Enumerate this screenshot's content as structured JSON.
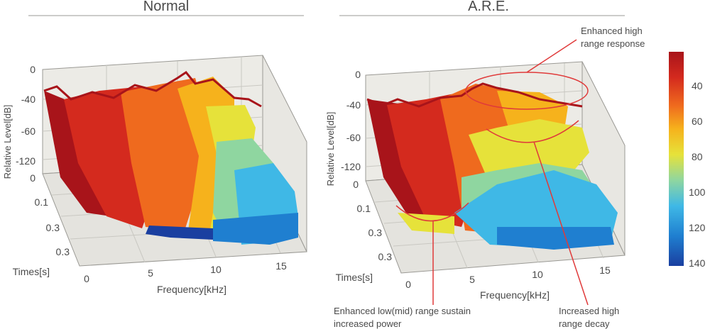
{
  "colors": {
    "scale": [
      "#1a3fa0",
      "#1f7fd0",
      "#3fb8e6",
      "#8fd6a0",
      "#e6e23a",
      "#f6b21c",
      "#ef6a1e",
      "#d42a1e",
      "#a8141a"
    ],
    "annotation": "#e03a3a",
    "wall": "#ecebe6",
    "floor": "#e4e3de",
    "grid": "#c9c8c2",
    "frame": "#9a9994"
  },
  "chart_data": [
    {
      "type": "surface",
      "title": "Normal",
      "xlabel": "Frequency[kHz]",
      "ylabel": "Relative Level[dB]",
      "zlabel": "Times[s]",
      "x_ticks": [
        "0",
        "5",
        "10",
        "15"
      ],
      "y_ticks": [
        "0",
        "-40",
        "-60",
        "-120"
      ],
      "z_ticks": [
        "0",
        "0.1",
        "0.3",
        "0.3"
      ],
      "annotations": []
    },
    {
      "type": "surface",
      "title": "A.R.E.",
      "xlabel": "Frequency[kHz]",
      "ylabel": "Relative Level[dB]",
      "zlabel": "Times[s]",
      "x_ticks": [
        "0",
        "5",
        "10",
        "15"
      ],
      "y_ticks": [
        "0",
        "-40",
        "-60",
        "-120"
      ],
      "z_ticks": [
        "0",
        "0.1",
        "0.3",
        "0.3"
      ],
      "annotations": [
        {
          "id": "high-response",
          "lines": [
            "Enhanced high",
            "range response"
          ]
        },
        {
          "id": "low-sustain",
          "lines": [
            "Enhanced low(mid) range sustain",
            "increased power"
          ]
        },
        {
          "id": "high-decay",
          "lines": [
            "Increased high",
            "range decay"
          ]
        }
      ]
    }
  ],
  "colorbar": {
    "ticks": [
      "40",
      "60",
      "80",
      "100",
      "120",
      "140"
    ]
  }
}
